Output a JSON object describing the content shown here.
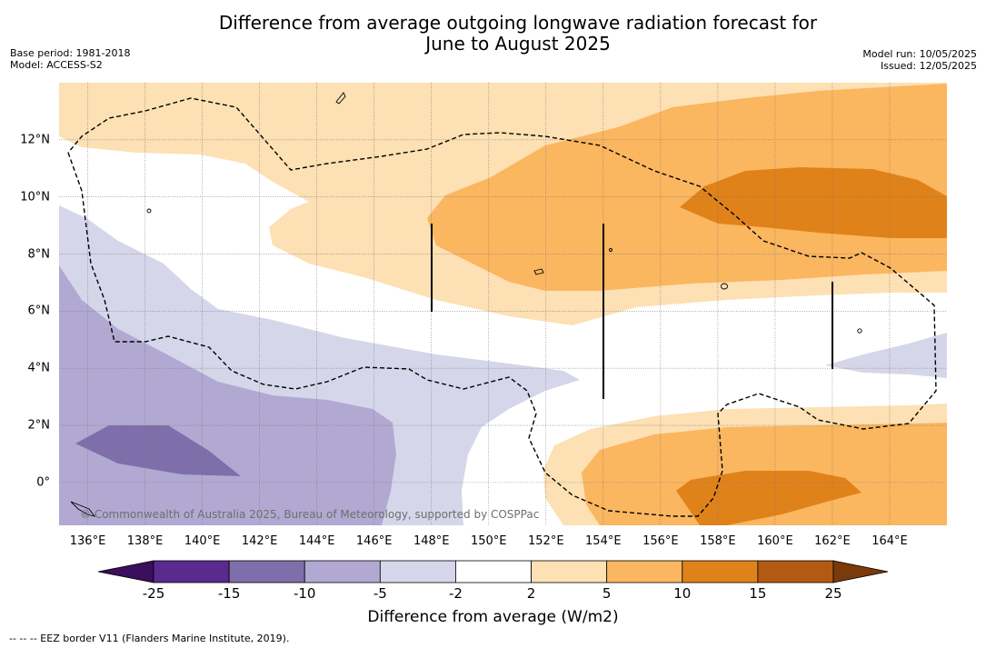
{
  "title_line1": "Difference from average outgoing longwave radiation forecast for",
  "title_line2": "June to August 2025",
  "base_period": "Base period: 1981-2018",
  "model": "Model: ACCESS-S2",
  "model_run": "Model run: 10/05/2025",
  "issued": "Issued: 12/05/2025",
  "copyright": "© Commonwealth of Australia 2025, Bureau of Meteorology, supported by COSPPac",
  "footnote": "--  --  -- EEZ border V11 (Flanders Marine Institute, 2019).",
  "map": {
    "lon_range": [
      135,
      166
    ],
    "lat_range": [
      -1.5,
      14
    ],
    "lon_labels": [
      "136°E",
      "138°E",
      "140°E",
      "142°E",
      "144°E",
      "146°E",
      "148°E",
      "150°E",
      "152°E",
      "154°E",
      "156°E",
      "158°E",
      "160°E",
      "162°E",
      "164°E"
    ],
    "lat_labels": [
      "12°N",
      "10°N",
      "8°N",
      "6°N",
      "4°N",
      "2°N",
      "0°"
    ],
    "grid": true
  },
  "colorbar": {
    "label": "Difference from average (W/m2)",
    "tick_labels": [
      "-25",
      "-15",
      "-10",
      "-5",
      "-2",
      "2",
      "5",
      "10",
      "15",
      "25"
    ],
    "colors": [
      "#3b0e5e",
      "#5a2a8e",
      "#7e6fab",
      "#b1a9d2",
      "#d6d6ea",
      "#ffffff",
      "#fde0b3",
      "#fbb660",
      "#e0821a",
      "#b35a12",
      "#7a3a0a"
    ]
  }
}
